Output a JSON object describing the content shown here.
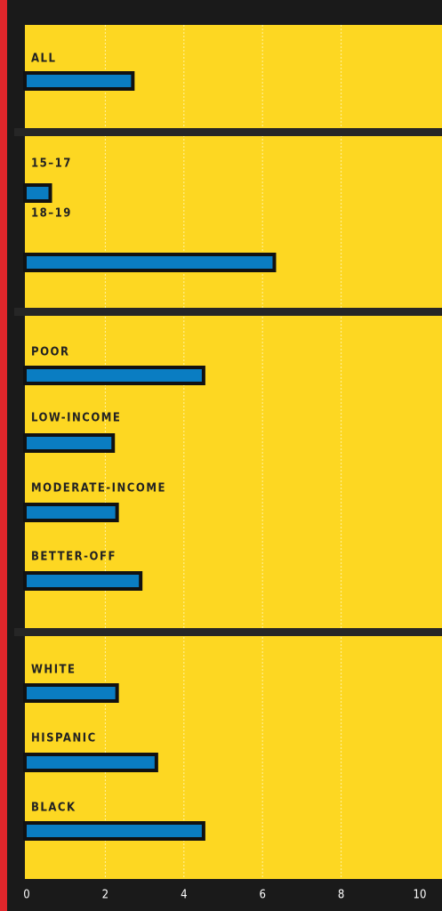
{
  "chart_data": {
    "type": "bar",
    "orientation": "horizontal",
    "categories": [
      "ALL",
      "15–17",
      "18–19",
      "POOR",
      "LOW-INCOME",
      "MODERATE-INCOME",
      "BETTER-OFF",
      "WHITE",
      "HISPANIC",
      "BLACK"
    ],
    "values": [
      2.7,
      0.6,
      6.3,
      4.5,
      2.2,
      2.3,
      2.9,
      2.3,
      3.3,
      4.5
    ],
    "color": "#0a7dc2",
    "xlim": [
      0,
      10
    ],
    "xticks": [
      0,
      2,
      4,
      6,
      8,
      10
    ],
    "grid": true
  }
}
